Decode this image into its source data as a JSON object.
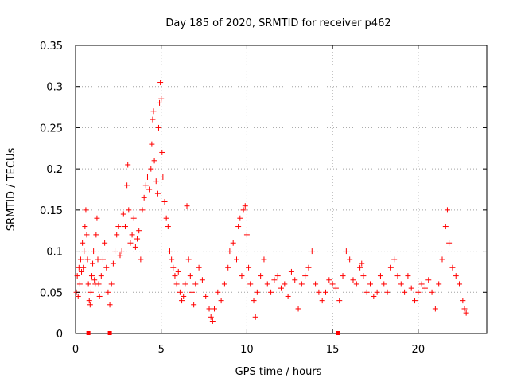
{
  "chart_data": {
    "type": "scatter",
    "title": "Day 185 of 2020, SRMTID for receiver p462",
    "xlabel": "GPS time / hours",
    "ylabel": "SRMTID / TECUs",
    "xlim": [
      0,
      24
    ],
    "ylim": [
      0,
      0.35
    ],
    "grid": true,
    "marker": "+",
    "x_ticks": [
      {
        "value": 0,
        "label": "0"
      },
      {
        "value": 5,
        "label": "5"
      },
      {
        "value": 10,
        "label": "10"
      },
      {
        "value": 15,
        "label": "15"
      },
      {
        "value": 20,
        "label": "20"
      }
    ],
    "y_ticks": [
      {
        "value": 0,
        "label": "0"
      },
      {
        "value": 0.05,
        "label": "0.05"
      },
      {
        "value": 0.1,
        "label": "0.1"
      },
      {
        "value": 0.15,
        "label": "0.15"
      },
      {
        "value": 0.2,
        "label": "0.2"
      },
      {
        "value": 0.25,
        "label": "0.25"
      },
      {
        "value": 0.3,
        "label": "0.3"
      },
      {
        "value": 0.35,
        "label": "0.35"
      }
    ],
    "series": [
      {
        "name": "SRMTID",
        "color": "#ff0000",
        "points": [
          [
            0.05,
            0.05
          ],
          [
            0.1,
            0.07
          ],
          [
            0.15,
            0.045
          ],
          [
            0.2,
            0.08
          ],
          [
            0.25,
            0.06
          ],
          [
            0.3,
            0.09
          ],
          [
            0.35,
            0.075
          ],
          [
            0.4,
            0.11
          ],
          [
            0.45,
            0.08
          ],
          [
            0.5,
            0.1
          ],
          [
            0.55,
            0.13
          ],
          [
            0.6,
            0.15
          ],
          [
            0.65,
            0.12
          ],
          [
            0.7,
            0.09
          ],
          [
            0.75,
            0.06
          ],
          [
            0.8,
            0.04
          ],
          [
            0.85,
            0.035
          ],
          [
            0.9,
            0.05
          ],
          [
            0.95,
            0.07
          ],
          [
            1.0,
            0.085
          ],
          [
            1.05,
            0.1
          ],
          [
            1.1,
            0.065
          ],
          [
            1.15,
            0.06
          ],
          [
            1.2,
            0.12
          ],
          [
            1.25,
            0.14
          ],
          [
            1.3,
            0.09
          ],
          [
            1.35,
            0.06
          ],
          [
            1.4,
            0.045
          ],
          [
            1.5,
            0.07
          ],
          [
            1.6,
            0.09
          ],
          [
            1.7,
            0.11
          ],
          [
            1.8,
            0.08
          ],
          [
            1.9,
            0.05
          ],
          [
            2.0,
            0.035
          ],
          [
            2.1,
            0.06
          ],
          [
            2.2,
            0.085
          ],
          [
            2.3,
            0.1
          ],
          [
            2.4,
            0.12
          ],
          [
            2.5,
            0.13
          ],
          [
            2.6,
            0.095
          ],
          [
            2.7,
            0.1
          ],
          [
            2.8,
            0.145
          ],
          [
            2.9,
            0.13
          ],
          [
            3.0,
            0.18
          ],
          [
            3.05,
            0.205
          ],
          [
            3.1,
            0.15
          ],
          [
            3.2,
            0.11
          ],
          [
            3.3,
            0.12
          ],
          [
            3.4,
            0.14
          ],
          [
            3.5,
            0.105
          ],
          [
            3.6,
            0.115
          ],
          [
            3.7,
            0.125
          ],
          [
            3.8,
            0.09
          ],
          [
            3.9,
            0.15
          ],
          [
            4.0,
            0.165
          ],
          [
            4.1,
            0.18
          ],
          [
            4.2,
            0.19
          ],
          [
            4.3,
            0.175
          ],
          [
            4.4,
            0.2
          ],
          [
            4.45,
            0.23
          ],
          [
            4.5,
            0.26
          ],
          [
            4.55,
            0.27
          ],
          [
            4.6,
            0.21
          ],
          [
            4.7,
            0.185
          ],
          [
            4.8,
            0.17
          ],
          [
            4.85,
            0.25
          ],
          [
            4.9,
            0.28
          ],
          [
            4.95,
            0.305
          ],
          [
            5.0,
            0.285
          ],
          [
            5.05,
            0.22
          ],
          [
            5.1,
            0.19
          ],
          [
            5.2,
            0.16
          ],
          [
            5.3,
            0.14
          ],
          [
            5.4,
            0.13
          ],
          [
            5.5,
            0.1
          ],
          [
            5.6,
            0.09
          ],
          [
            5.7,
            0.08
          ],
          [
            5.8,
            0.07
          ],
          [
            5.9,
            0.06
          ],
          [
            6.0,
            0.075
          ],
          [
            6.1,
            0.05
          ],
          [
            6.2,
            0.04
          ],
          [
            6.3,
            0.045
          ],
          [
            6.4,
            0.06
          ],
          [
            6.5,
            0.155
          ],
          [
            6.6,
            0.09
          ],
          [
            6.7,
            0.07
          ],
          [
            6.8,
            0.05
          ],
          [
            6.9,
            0.035
          ],
          [
            7.0,
            0.06
          ],
          [
            7.2,
            0.08
          ],
          [
            7.4,
            0.065
          ],
          [
            7.6,
            0.045
          ],
          [
            7.8,
            0.03
          ],
          [
            7.9,
            0.02
          ],
          [
            8.0,
            0.015
          ],
          [
            8.1,
            0.03
          ],
          [
            8.3,
            0.05
          ],
          [
            8.5,
            0.04
          ],
          [
            8.7,
            0.06
          ],
          [
            8.9,
            0.08
          ],
          [
            9.0,
            0.1
          ],
          [
            9.2,
            0.11
          ],
          [
            9.4,
            0.09
          ],
          [
            9.5,
            0.13
          ],
          [
            9.6,
            0.14
          ],
          [
            9.7,
            0.07
          ],
          [
            9.8,
            0.15
          ],
          [
            9.9,
            0.155
          ],
          [
            10.0,
            0.12
          ],
          [
            10.1,
            0.08
          ],
          [
            10.2,
            0.06
          ],
          [
            10.4,
            0.04
          ],
          [
            10.5,
            0.02
          ],
          [
            10.6,
            0.05
          ],
          [
            10.8,
            0.07
          ],
          [
            11.0,
            0.09
          ],
          [
            11.2,
            0.06
          ],
          [
            11.4,
            0.05
          ],
          [
            11.6,
            0.065
          ],
          [
            11.8,
            0.07
          ],
          [
            12.0,
            0.055
          ],
          [
            12.2,
            0.06
          ],
          [
            12.4,
            0.045
          ],
          [
            12.6,
            0.075
          ],
          [
            12.8,
            0.065
          ],
          [
            13.0,
            0.03
          ],
          [
            13.2,
            0.06
          ],
          [
            13.4,
            0.07
          ],
          [
            13.6,
            0.08
          ],
          [
            13.8,
            0.1
          ],
          [
            14.0,
            0.06
          ],
          [
            14.2,
            0.05
          ],
          [
            14.4,
            0.04
          ],
          [
            14.6,
            0.05
          ],
          [
            14.8,
            0.065
          ],
          [
            15.0,
            0.06
          ],
          [
            15.2,
            0.055
          ],
          [
            15.4,
            0.04
          ],
          [
            15.6,
            0.07
          ],
          [
            15.8,
            0.1
          ],
          [
            16.0,
            0.09
          ],
          [
            16.2,
            0.065
          ],
          [
            16.4,
            0.06
          ],
          [
            16.6,
            0.08
          ],
          [
            16.7,
            0.085
          ],
          [
            16.8,
            0.07
          ],
          [
            17.0,
            0.05
          ],
          [
            17.2,
            0.06
          ],
          [
            17.4,
            0.045
          ],
          [
            17.6,
            0.05
          ],
          [
            17.8,
            0.07
          ],
          [
            18.0,
            0.06
          ],
          [
            18.2,
            0.05
          ],
          [
            18.4,
            0.08
          ],
          [
            18.6,
            0.09
          ],
          [
            18.8,
            0.07
          ],
          [
            19.0,
            0.06
          ],
          [
            19.2,
            0.05
          ],
          [
            19.4,
            0.07
          ],
          [
            19.6,
            0.055
          ],
          [
            19.8,
            0.04
          ],
          [
            20.0,
            0.05
          ],
          [
            20.2,
            0.06
          ],
          [
            20.4,
            0.055
          ],
          [
            20.6,
            0.065
          ],
          [
            20.8,
            0.05
          ],
          [
            21.0,
            0.03
          ],
          [
            21.2,
            0.06
          ],
          [
            21.4,
            0.09
          ],
          [
            21.6,
            0.13
          ],
          [
            21.7,
            0.15
          ],
          [
            21.8,
            0.11
          ],
          [
            22.0,
            0.08
          ],
          [
            22.2,
            0.07
          ],
          [
            22.4,
            0.06
          ],
          [
            22.6,
            0.04
          ],
          [
            22.7,
            0.03
          ],
          [
            22.8,
            0.025
          ]
        ]
      }
    ],
    "markers_on_axis": [
      0.75,
      2.0,
      15.3
    ]
  }
}
